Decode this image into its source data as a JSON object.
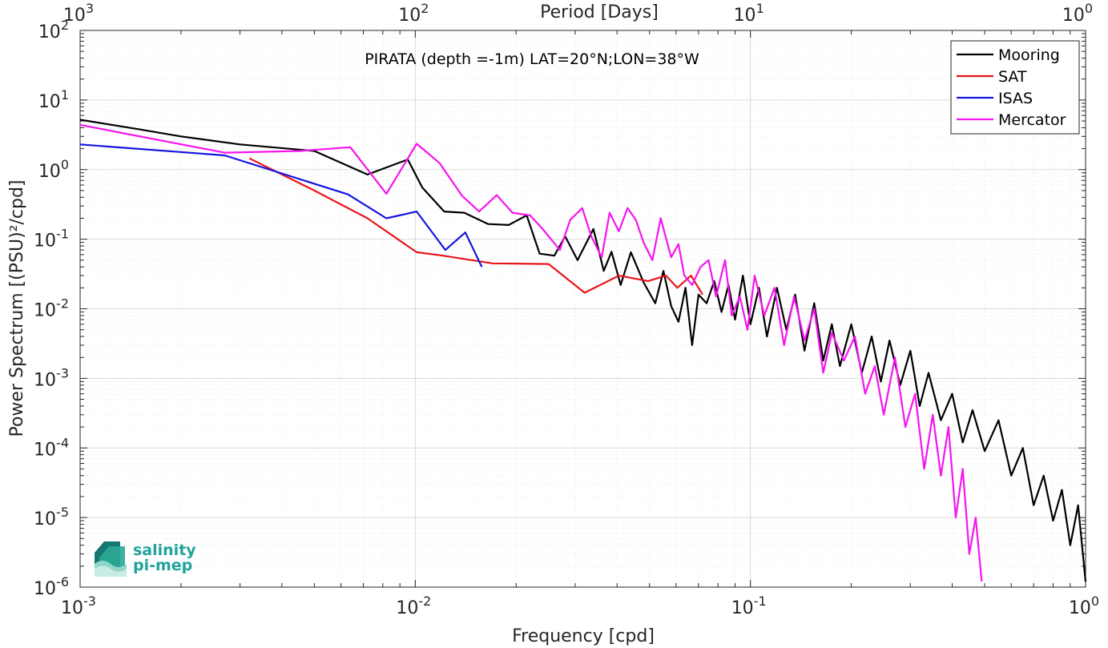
{
  "chart_data": {
    "type": "line",
    "title": "PIRATA (depth =-1m) LAT=20°N;LON=38°W",
    "xlabel": "Frequency [cpd]",
    "ylabel": "Power Spectrum [(PSU)²/cpd]",
    "top_xlabel": "Period [Days]",
    "x_scale": "log",
    "y_scale": "log",
    "xlim": [
      0.001,
      1
    ],
    "ylim": [
      1e-06,
      100
    ],
    "grid": true,
    "legend_position": "top-right",
    "x_ticks": [
      {
        "value": 0.001,
        "base": "10",
        "exp": "-3"
      },
      {
        "value": 0.01,
        "base": "10",
        "exp": "-2"
      },
      {
        "value": 0.1,
        "base": "10",
        "exp": "-1"
      },
      {
        "value": 1,
        "base": "10",
        "exp": "0"
      }
    ],
    "top_ticks": [
      {
        "value": 0.001,
        "base": "10",
        "exp": "3"
      },
      {
        "value": 0.01,
        "base": "10",
        "exp": "2"
      },
      {
        "value": 0.1,
        "base": "10",
        "exp": "1"
      },
      {
        "value": 1,
        "base": "10",
        "exp": "0"
      }
    ],
    "y_ticks": [
      {
        "value": 100,
        "base": "10",
        "exp": "2"
      },
      {
        "value": 10,
        "base": "10",
        "exp": "1"
      },
      {
        "value": 1,
        "base": "10",
        "exp": "0"
      },
      {
        "value": 0.1,
        "base": "10",
        "exp": "-1"
      },
      {
        "value": 0.01,
        "base": "10",
        "exp": "-2"
      },
      {
        "value": 0.001,
        "base": "10",
        "exp": "-3"
      },
      {
        "value": 0.0001,
        "base": "10",
        "exp": "-4"
      },
      {
        "value": 1e-05,
        "base": "10",
        "exp": "-5"
      },
      {
        "value": 1e-06,
        "base": "10",
        "exp": "-6"
      }
    ],
    "series": [
      {
        "name": "Mooring",
        "color": "#000000",
        "points": [
          [
            0.001,
            5.2
          ],
          [
            0.0015,
            3.8
          ],
          [
            0.002,
            3.0
          ],
          [
            0.003,
            2.3
          ],
          [
            0.005,
            1.85
          ],
          [
            0.0072,
            0.85
          ],
          [
            0.0095,
            1.4
          ],
          [
            0.0105,
            0.55
          ],
          [
            0.0122,
            0.25
          ],
          [
            0.014,
            0.24
          ],
          [
            0.0165,
            0.165
          ],
          [
            0.019,
            0.16
          ],
          [
            0.0215,
            0.22
          ],
          [
            0.0235,
            0.062
          ],
          [
            0.026,
            0.058
          ],
          [
            0.028,
            0.11
          ],
          [
            0.0305,
            0.05
          ],
          [
            0.034,
            0.14
          ],
          [
            0.0365,
            0.035
          ],
          [
            0.0385,
            0.066
          ],
          [
            0.041,
            0.022
          ],
          [
            0.044,
            0.065
          ],
          [
            0.048,
            0.024
          ],
          [
            0.052,
            0.012
          ],
          [
            0.055,
            0.035
          ],
          [
            0.058,
            0.011
          ],
          [
            0.061,
            0.0065
          ],
          [
            0.064,
            0.02
          ],
          [
            0.067,
            0.003
          ],
          [
            0.07,
            0.016
          ],
          [
            0.074,
            0.012
          ],
          [
            0.078,
            0.025
          ],
          [
            0.082,
            0.009
          ],
          [
            0.086,
            0.022
          ],
          [
            0.09,
            0.007
          ],
          [
            0.095,
            0.03
          ],
          [
            0.1,
            0.006
          ],
          [
            0.106,
            0.02
          ],
          [
            0.112,
            0.004
          ],
          [
            0.12,
            0.02
          ],
          [
            0.128,
            0.005
          ],
          [
            0.136,
            0.016
          ],
          [
            0.145,
            0.0025
          ],
          [
            0.155,
            0.012
          ],
          [
            0.165,
            0.0018
          ],
          [
            0.175,
            0.006
          ],
          [
            0.185,
            0.0015
          ],
          [
            0.2,
            0.006
          ],
          [
            0.215,
            0.0012
          ],
          [
            0.23,
            0.004
          ],
          [
            0.245,
            0.0009
          ],
          [
            0.26,
            0.0035
          ],
          [
            0.28,
            0.0008
          ],
          [
            0.3,
            0.0025
          ],
          [
            0.32,
            0.0004
          ],
          [
            0.34,
            0.0012
          ],
          [
            0.37,
            0.00025
          ],
          [
            0.4,
            0.0006
          ],
          [
            0.43,
            0.00012
          ],
          [
            0.46,
            0.00035
          ],
          [
            0.5,
            9e-05
          ],
          [
            0.55,
            0.00025
          ],
          [
            0.6,
            4e-05
          ],
          [
            0.65,
            0.0001
          ],
          [
            0.7,
            1.5e-05
          ],
          [
            0.75,
            4e-05
          ],
          [
            0.8,
            9e-06
          ],
          [
            0.85,
            2.5e-05
          ],
          [
            0.9,
            4e-06
          ],
          [
            0.95,
            1.5e-05
          ],
          [
            1.0,
            1.2e-06
          ]
        ]
      },
      {
        "name": "SAT",
        "color": "#e8141c",
        "points": [
          [
            0.0032,
            1.45
          ],
          [
            0.005,
            0.5
          ],
          [
            0.0072,
            0.2
          ],
          [
            0.0101,
            0.065
          ],
          [
            0.0121,
            0.058
          ],
          [
            0.017,
            0.045
          ],
          [
            0.025,
            0.044
          ],
          [
            0.032,
            0.017
          ],
          [
            0.0405,
            0.03
          ],
          [
            0.0495,
            0.025
          ],
          [
            0.056,
            0.03
          ],
          [
            0.0605,
            0.02
          ],
          [
            0.0665,
            0.03
          ],
          [
            0.072,
            0.016
          ]
        ]
      },
      {
        "name": "ISAS",
        "color": "#1414e0",
        "points": [
          [
            0.001,
            2.3
          ],
          [
            0.0027,
            1.6
          ],
          [
            0.0063,
            0.44
          ],
          [
            0.0082,
            0.2
          ],
          [
            0.0101,
            0.25
          ],
          [
            0.0123,
            0.07
          ],
          [
            0.0141,
            0.125
          ],
          [
            0.0158,
            0.04
          ]
        ]
      },
      {
        "name": "Mercator",
        "color": "#f514f0",
        "points": [
          [
            0.001,
            4.4
          ],
          [
            0.0027,
            1.75
          ],
          [
            0.0045,
            1.85
          ],
          [
            0.0064,
            2.1
          ],
          [
            0.0082,
            0.45
          ],
          [
            0.0101,
            2.35
          ],
          [
            0.0118,
            1.25
          ],
          [
            0.0138,
            0.42
          ],
          [
            0.0155,
            0.25
          ],
          [
            0.0175,
            0.43
          ],
          [
            0.0195,
            0.24
          ],
          [
            0.022,
            0.22
          ],
          [
            0.024,
            0.14
          ],
          [
            0.027,
            0.07
          ],
          [
            0.029,
            0.19
          ],
          [
            0.0315,
            0.28
          ],
          [
            0.0335,
            0.11
          ],
          [
            0.036,
            0.055
          ],
          [
            0.038,
            0.24
          ],
          [
            0.0405,
            0.13
          ],
          [
            0.043,
            0.28
          ],
          [
            0.0455,
            0.19
          ],
          [
            0.048,
            0.09
          ],
          [
            0.051,
            0.05
          ],
          [
            0.054,
            0.2
          ],
          [
            0.058,
            0.055
          ],
          [
            0.061,
            0.085
          ],
          [
            0.0635,
            0.03
          ],
          [
            0.067,
            0.022
          ],
          [
            0.071,
            0.04
          ],
          [
            0.075,
            0.05
          ],
          [
            0.079,
            0.015
          ],
          [
            0.084,
            0.05
          ],
          [
            0.088,
            0.008
          ],
          [
            0.093,
            0.015
          ],
          [
            0.098,
            0.005
          ],
          [
            0.103,
            0.03
          ],
          [
            0.11,
            0.008
          ],
          [
            0.118,
            0.02
          ],
          [
            0.126,
            0.003
          ],
          [
            0.135,
            0.015
          ],
          [
            0.145,
            0.0035
          ],
          [
            0.155,
            0.01
          ],
          [
            0.165,
            0.0012
          ],
          [
            0.175,
            0.0045
          ],
          [
            0.19,
            0.0018
          ],
          [
            0.205,
            0.004
          ],
          [
            0.22,
            0.0006
          ],
          [
            0.235,
            0.0015
          ],
          [
            0.25,
            0.0003
          ],
          [
            0.27,
            0.002
          ],
          [
            0.29,
            0.0002
          ],
          [
            0.31,
            0.0006
          ],
          [
            0.33,
            5e-05
          ],
          [
            0.35,
            0.0003
          ],
          [
            0.37,
            4e-05
          ],
          [
            0.39,
            0.0002
          ],
          [
            0.41,
            1e-05
          ],
          [
            0.43,
            5e-05
          ],
          [
            0.45,
            3e-06
          ],
          [
            0.47,
            1e-05
          ],
          [
            0.49,
            1.2e-06
          ]
        ]
      }
    ]
  },
  "logo": {
    "line1": "salinity",
    "line2": "pi-mep",
    "color": "#1fa39a"
  }
}
